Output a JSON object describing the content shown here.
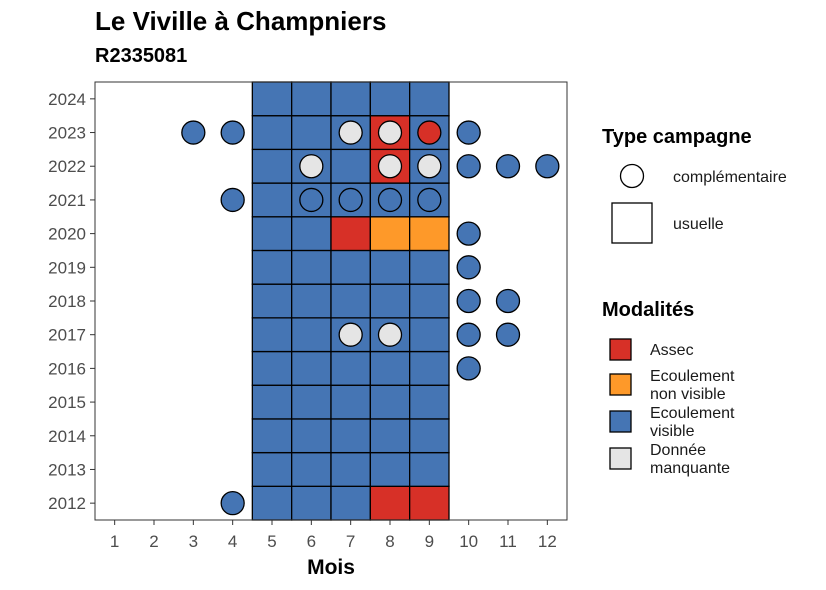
{
  "title": "Le Viville à Champniers",
  "subtitle": "R2335081",
  "colors": {
    "Assec": "#d73027",
    "Ecoulement non visible": "#fe9929",
    "Ecoulement visible": "#4575b4",
    "Donnée manquante": "#e5e5e5"
  },
  "legend": {
    "type_title": "Type campagne",
    "type_items": [
      {
        "label": "complémentaire",
        "shape": "circle"
      },
      {
        "label": "usuelle",
        "shape": "square"
      }
    ],
    "mod_title": "Modalités",
    "mod_items": [
      {
        "key": "Assec",
        "lines": [
          "Assec"
        ]
      },
      {
        "key": "Ecoulement non visible",
        "lines": [
          "Ecoulement",
          "non visible"
        ]
      },
      {
        "key": "Ecoulement visible",
        "lines": [
          "Ecoulement",
          "visible"
        ]
      },
      {
        "key": "Donnée manquante",
        "lines": [
          "Donnée",
          "manquante"
        ]
      }
    ]
  },
  "chart_data": {
    "type": "heatmap",
    "xlabel": "Mois",
    "ylabel": "",
    "x_ticks": [
      1,
      2,
      3,
      4,
      5,
      6,
      7,
      8,
      9,
      10,
      11,
      12
    ],
    "y_ticks": [
      2012,
      2013,
      2014,
      2015,
      2016,
      2017,
      2018,
      2019,
      2020,
      2021,
      2022,
      2023,
      2024
    ],
    "xlim": [
      0.5,
      12.5
    ],
    "ylim": [
      2011.5,
      2024.5
    ],
    "usuelle": {
      "months": [
        5,
        6,
        7,
        8,
        9
      ],
      "default": "Ecoulement visible",
      "exceptions": [
        {
          "year": 2012,
          "month": 8,
          "modalite": "Assec"
        },
        {
          "year": 2012,
          "month": 9,
          "modalite": "Assec"
        },
        {
          "year": 2020,
          "month": 7,
          "modalite": "Assec"
        },
        {
          "year": 2020,
          "month": 8,
          "modalite": "Ecoulement non visible"
        },
        {
          "year": 2020,
          "month": 9,
          "modalite": "Ecoulement non visible"
        },
        {
          "year": 2022,
          "month": 8,
          "modalite": "Assec"
        },
        {
          "year": 2023,
          "month": 8,
          "modalite": "Assec"
        }
      ]
    },
    "complementaire": [
      {
        "year": 2023,
        "month": 3,
        "modalite": "Ecoulement visible"
      },
      {
        "year": 2023,
        "month": 4,
        "modalite": "Ecoulement visible"
      },
      {
        "year": 2023,
        "month": 7,
        "modalite": "Donnée manquante"
      },
      {
        "year": 2023,
        "month": 8,
        "modalite": "Donnée manquante"
      },
      {
        "year": 2023,
        "month": 9,
        "modalite": "Assec"
      },
      {
        "year": 2023,
        "month": 10,
        "modalite": "Ecoulement visible"
      },
      {
        "year": 2022,
        "month": 6,
        "modalite": "Donnée manquante"
      },
      {
        "year": 2022,
        "month": 8,
        "modalite": "Donnée manquante"
      },
      {
        "year": 2022,
        "month": 9,
        "modalite": "Donnée manquante"
      },
      {
        "year": 2022,
        "month": 10,
        "modalite": "Ecoulement visible"
      },
      {
        "year": 2022,
        "month": 11,
        "modalite": "Ecoulement visible"
      },
      {
        "year": 2022,
        "month": 12,
        "modalite": "Ecoulement visible"
      },
      {
        "year": 2021,
        "month": 4,
        "modalite": "Ecoulement visible"
      },
      {
        "year": 2021,
        "month": 6,
        "modalite": "Ecoulement visible"
      },
      {
        "year": 2021,
        "month": 7,
        "modalite": "Ecoulement visible"
      },
      {
        "year": 2021,
        "month": 8,
        "modalite": "Ecoulement visible"
      },
      {
        "year": 2021,
        "month": 9,
        "modalite": "Ecoulement visible"
      },
      {
        "year": 2020,
        "month": 10,
        "modalite": "Ecoulement visible"
      },
      {
        "year": 2019,
        "month": 10,
        "modalite": "Ecoulement visible"
      },
      {
        "year": 2018,
        "month": 10,
        "modalite": "Ecoulement visible"
      },
      {
        "year": 2018,
        "month": 11,
        "modalite": "Ecoulement visible"
      },
      {
        "year": 2017,
        "month": 7,
        "modalite": "Donnée manquante"
      },
      {
        "year": 2017,
        "month": 8,
        "modalite": "Donnée manquante"
      },
      {
        "year": 2017,
        "month": 10,
        "modalite": "Ecoulement visible"
      },
      {
        "year": 2017,
        "month": 11,
        "modalite": "Ecoulement visible"
      },
      {
        "year": 2016,
        "month": 10,
        "modalite": "Ecoulement visible"
      },
      {
        "year": 2012,
        "month": 4,
        "modalite": "Ecoulement visible"
      }
    ],
    "grid": false,
    "legend_position": "right"
  }
}
